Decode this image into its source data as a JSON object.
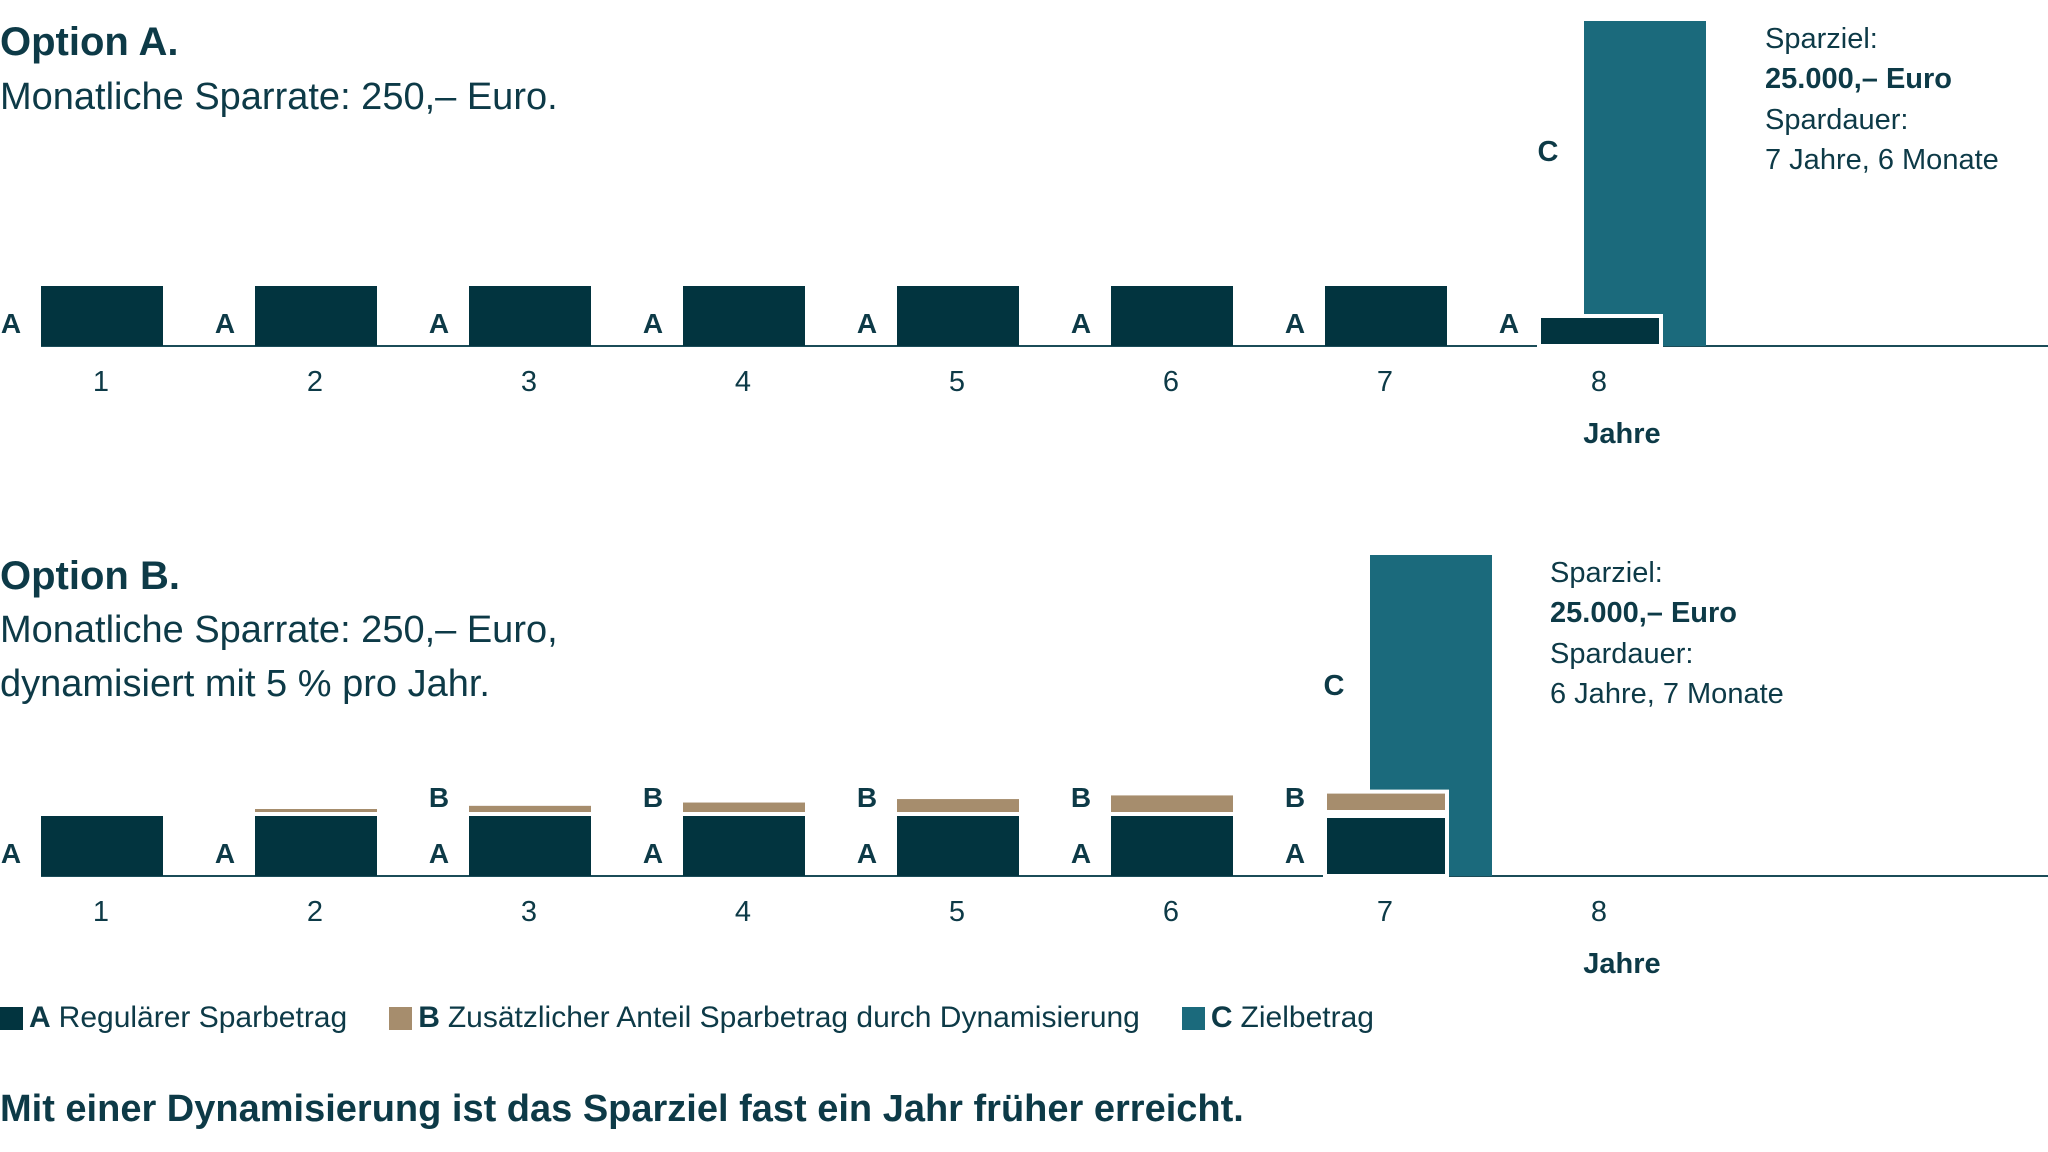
{
  "colors": {
    "A": "#02343f",
    "B": "#a68d6d",
    "C": "#1b6a7c",
    "text": "#0d3a47",
    "axis": "#1b4c58"
  },
  "option_a": {
    "title": "Option A.",
    "subtitle_lines": [
      "Monatliche Sparrate: 250,– Euro."
    ]
  },
  "option_b": {
    "title": "Option B.",
    "subtitle_lines": [
      "Monatliche Sparrate: 250,– Euro,",
      "dynamisiert mit 5 % pro Jahr."
    ]
  },
  "legend": [
    {
      "key": "A",
      "label": "Regulärer Sparbetrag",
      "color": "#02343f"
    },
    {
      "key": "B",
      "label": "Zusätzlicher Anteil Sparbetrag durch Dynamisierung",
      "color": "#a68d6d"
    },
    {
      "key": "C",
      "label": "Zielbetrag",
      "color": "#1b6a7c"
    }
  ],
  "footer": "Mit einer Dynamisierung ist das Sparziel fast ein Jahr früher erreicht.",
  "chart_data": [
    {
      "type": "bar",
      "title": "Option A.",
      "xlabel": "Jahre",
      "categories": [
        "1",
        "2",
        "3",
        "4",
        "5",
        "6",
        "7",
        "8"
      ],
      "series": [
        {
          "name": "A",
          "label": "Regulärer Sparbetrag",
          "values": [
            3000,
            3000,
            3000,
            3000,
            3000,
            3000,
            3000,
            1500
          ]
        }
      ],
      "target": {
        "label": "C",
        "name": "Zielbetrag",
        "value": 25000,
        "year": 8
      },
      "annotation": {
        "goal_label": "Sparziel:",
        "goal_value": "25.000,– Euro",
        "duration_label": "Spardauer:",
        "duration_value": "7 Jahre, 6 Monate"
      }
    },
    {
      "type": "bar",
      "title": "Option B.",
      "xlabel": "Jahre",
      "categories": [
        "1",
        "2",
        "3",
        "4",
        "5",
        "6",
        "7",
        "8"
      ],
      "series": [
        {
          "name": "A",
          "label": "Regulärer Sparbetrag",
          "values": [
            3000,
            3000,
            3000,
            3000,
            3000,
            3000,
            3000,
            null
          ]
        },
        {
          "name": "B",
          "label": "Zusätzlicher Anteil Sparbetrag durch Dynamisierung",
          "values": [
            0,
            150,
            308,
            473,
            647,
            829,
            1020,
            null
          ],
          "show_label": [
            false,
            false,
            true,
            true,
            true,
            true,
            true,
            false
          ]
        }
      ],
      "target": {
        "label": "C",
        "name": "Zielbetrag",
        "value": 25000,
        "year": 7
      },
      "annotation": {
        "goal_label": "Sparziel:",
        "goal_value": "25.000,– Euro",
        "duration_label": "Spardauer:",
        "duration_value": "6 Jahre, 7 Monate"
      }
    }
  ]
}
